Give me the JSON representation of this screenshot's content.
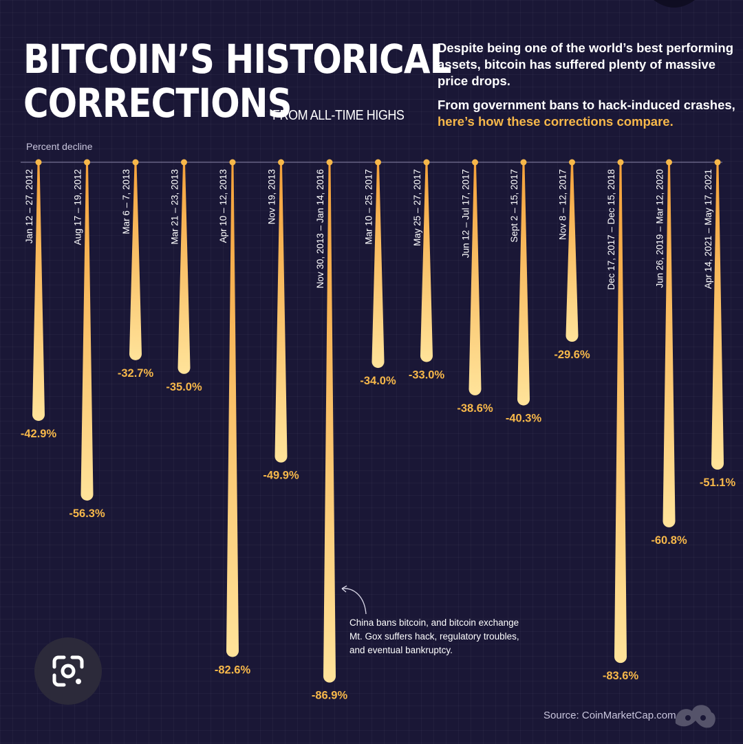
{
  "header": {
    "title_line1": "BITCOIN’S HISTORICAL",
    "title_line2": "CORRECTIONS",
    "subtitle": "FROM ALL-TIME HIGHS"
  },
  "intro": {
    "paragraph1": "Despite being one of the world’s best performing assets, bitcoin has suffered plenty of massive price drops.",
    "paragraph2": "From government bans to hack-induced crashes,",
    "paragraph2_highlight": "here’s how these corrections compare."
  },
  "annotation": {
    "text": "China bans bitcoin, and bitcoin exchange Mt. Gox suffers hack, regulatory troubles, and eventual bankruptcy."
  },
  "source": "Source: CoinMarketCap.com",
  "colors": {
    "background": "#1a1736",
    "drop_top": "#f4a13a",
    "drop_bottom": "#ffe39a",
    "label": "#f7b84a"
  },
  "icons": [
    "google-lens-icon",
    "brand-logo-icon"
  ],
  "chart_data": {
    "type": "bar",
    "orientation": "downward",
    "title": "BITCOIN’S HISTORICAL CORRECTIONS",
    "subtitle": "FROM ALL-TIME HIGHS",
    "ylabel": "Percent decline",
    "ylim": [
      0,
      -90
    ],
    "categories": [
      "Jan 12 – 27, 2012",
      "Aug 17 – 19, 2012",
      "Mar 6 – 7, 2013",
      "Mar 21 – 23, 2013",
      "Apr 10 – 12, 2013",
      "Nov 19, 2013",
      "Nov 30, 2013 – Jan 14, 2016",
      "Mar 10 – 25, 2017",
      "May 25 – 27, 2017",
      "Jun 12 – Jul 17, 2017",
      "Sept 2 – 15, 2017",
      "Nov 8 – 12, 2017",
      "Dec 17, 2017 – Dec 15, 2018",
      "Jun 26, 2019 – Mar 12, 2020",
      "Apr 14,  2021 – May 17, 2021"
    ],
    "values": [
      -42.9,
      -56.3,
      -32.7,
      -35.0,
      -82.6,
      -49.9,
      -86.9,
      -34.0,
      -33.0,
      -38.6,
      -40.3,
      -29.6,
      -83.6,
      -60.8,
      -51.1
    ],
    "value_labels": [
      "-42.9%",
      "-56.3%",
      "-32.7%",
      "-35.0%",
      "-82.6%",
      "-49.9%",
      "-86.9%",
      "-34.0%",
      "-33.0%",
      "-38.6%",
      "-40.3%",
      "-29.6%",
      "-83.6%",
      "-60.8%",
      "-51.1%"
    ]
  }
}
